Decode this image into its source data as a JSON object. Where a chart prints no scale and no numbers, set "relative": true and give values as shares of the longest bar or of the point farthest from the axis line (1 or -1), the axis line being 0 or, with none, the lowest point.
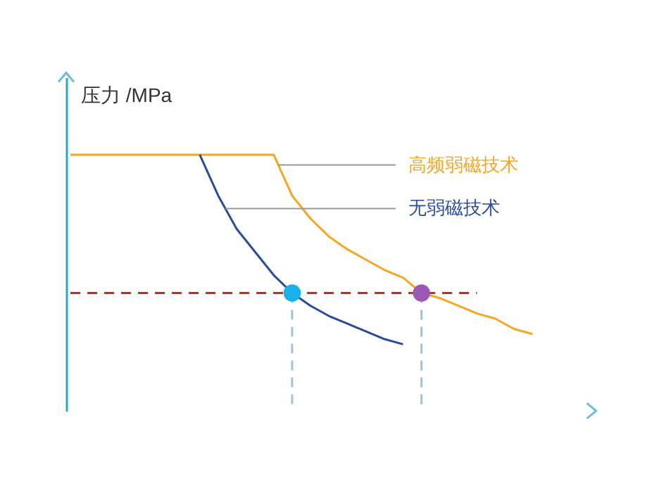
{
  "chart_data": {
    "type": "line",
    "ylabel": "压力 /MPa",
    "relative": true,
    "legend": false,
    "marker": "none",
    "categories": [
      null,
      null,
      null,
      null,
      null,
      null,
      null,
      null,
      null,
      null,
      null,
      null,
      null,
      null,
      null,
      null,
      null,
      null,
      null,
      null,
      null,
      null,
      null,
      null,
      null,
      null
    ],
    "series": [
      {
        "name": "高频弱磁技术",
        "color": "#f5a623",
        "values": [
          1,
          1,
          1,
          1,
          1,
          1,
          1,
          1,
          1,
          1,
          1,
          1,
          0.84,
          0.75,
          0.68,
          0.63,
          0.59,
          0.55,
          0.52,
          0.46,
          0.44,
          0.41,
          0.38,
          0.36,
          0.32,
          0.3
        ]
      },
      {
        "name": "无弱磁技术",
        "color": "#2b4c9b",
        "values": [
          null,
          null,
          null,
          null,
          null,
          null,
          null,
          1,
          0.84,
          0.71,
          0.62,
          0.53,
          0.46,
          0.41,
          0.37,
          0.34,
          0.31,
          0.28,
          0.26,
          null,
          null,
          null,
          null,
          null,
          null,
          null
        ]
      },
      {
        "color": "#e0201b",
        "line_style": "dashed",
        "values": [
          0.46,
          0.46,
          0.46,
          0.46,
          0.46,
          0.46,
          0.46,
          0.46,
          0.46,
          0.46,
          0.46,
          0.46,
          0.46,
          0.46,
          0.46,
          0.46,
          0.46,
          0.46,
          0.46,
          0.46,
          0.46,
          0.46,
          0.46,
          null,
          null,
          null
        ]
      }
    ]
  }
}
